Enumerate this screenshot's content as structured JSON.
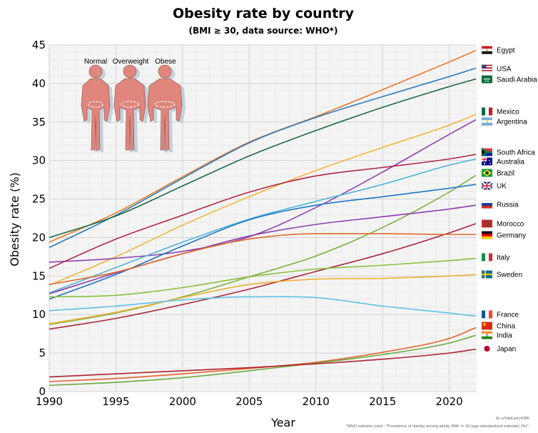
{
  "chart_data": {
    "type": "line",
    "title": "Obesity rate by country",
    "subtitle": "(BMI ≥ 30, data source: WHO*)",
    "xlabel": "Year",
    "ylabel": "Obesity rate (%)",
    "xlim": [
      1990,
      2022
    ],
    "ylim": [
      0,
      45
    ],
    "xticks": [
      1990,
      1995,
      2000,
      2005,
      2010,
      2015,
      2020
    ],
    "yticks": [
      0,
      5,
      10,
      15,
      20,
      25,
      30,
      35,
      40,
      45
    ],
    "grid": true,
    "legend": "right-edge labels",
    "x": [
      1990,
      1995,
      2000,
      2005,
      2010,
      2015,
      2020,
      2022
    ],
    "series": [
      {
        "name": "Egypt",
        "color": "#e87a2c",
        "values": [
          19.4,
          23.2,
          27.9,
          32.4,
          35.7,
          39.2,
          42.8,
          44.3
        ]
      },
      {
        "name": "USA",
        "color": "#2a7bbd",
        "values": [
          18.7,
          22.9,
          27.7,
          32.3,
          35.6,
          38.3,
          40.9,
          42.0
        ]
      },
      {
        "name": "Saudi Arabia",
        "color": "#1e6b45",
        "values": [
          20.0,
          22.8,
          26.7,
          30.6,
          33.9,
          36.9,
          39.6,
          40.6
        ]
      },
      {
        "name": "Mexico",
        "color": "#f2b43c",
        "values": [
          13.8,
          17.5,
          21.6,
          25.3,
          28.7,
          31.7,
          34.6,
          36.0
        ]
      },
      {
        "name": "Argentina",
        "color": "#8e44ad",
        "values": [
          16.8,
          17.3,
          18.2,
          20.1,
          23.9,
          28.5,
          33.4,
          35.3
        ]
      },
      {
        "name": "South Africa",
        "color": "#b02845",
        "values": [
          16.0,
          19.8,
          22.9,
          25.9,
          28.0,
          29.1,
          30.2,
          30.8
        ]
      },
      {
        "name": "Australia",
        "color": "#4fb3d9",
        "values": [
          12.8,
          16.1,
          19.4,
          22.4,
          24.7,
          26.9,
          29.4,
          30.2
        ]
      },
      {
        "name": "Brazil",
        "color": "#7cb342",
        "values": [
          8.7,
          10.2,
          12.3,
          14.9,
          17.6,
          21.3,
          25.9,
          28.1
        ]
      },
      {
        "name": "UK",
        "color": "#1f77c4",
        "values": [
          12.0,
          15.2,
          18.9,
          22.3,
          24.2,
          25.3,
          26.4,
          26.9
        ]
      },
      {
        "name": "Russia",
        "color": "#8a3fb0",
        "values": [
          12.7,
          15.4,
          17.9,
          20.2,
          21.7,
          22.7,
          23.7,
          24.2
        ]
      },
      {
        "name": "Morocco",
        "color": "#a8263b",
        "values": [
          8.1,
          9.5,
          11.3,
          13.3,
          15.6,
          17.9,
          20.6,
          21.8
        ]
      },
      {
        "name": "Germany",
        "color": "#e06a2a",
        "values": [
          13.9,
          15.5,
          17.9,
          19.8,
          20.5,
          20.5,
          20.4,
          20.4
        ]
      },
      {
        "name": "Italy",
        "color": "#8bbf3e",
        "values": [
          12.3,
          12.5,
          13.5,
          14.9,
          15.9,
          16.4,
          17.0,
          17.3
        ]
      },
      {
        "name": "Sweden",
        "color": "#f0b030",
        "values": [
          8.8,
          10.3,
          12.2,
          13.9,
          14.6,
          14.7,
          15.0,
          15.2
        ]
      },
      {
        "name": "France",
        "color": "#5ec1e6",
        "values": [
          10.5,
          11.1,
          11.9,
          12.3,
          12.2,
          11.1,
          10.2,
          9.8
        ]
      },
      {
        "name": "China",
        "color": "#e6622e",
        "values": [
          1.3,
          1.7,
          2.3,
          3.0,
          3.8,
          5.1,
          6.9,
          8.3
        ]
      },
      {
        "name": "India",
        "color": "#6aab3f",
        "values": [
          0.8,
          1.2,
          1.8,
          2.7,
          3.7,
          4.8,
          6.3,
          7.3
        ]
      },
      {
        "name": "Japan",
        "color": "#b02232",
        "values": [
          1.9,
          2.3,
          2.7,
          3.1,
          3.6,
          4.2,
          5.0,
          5.5
        ]
      }
    ],
    "legend_flags": {
      "Egypt": [
        "#ce1126",
        "#ffffff",
        "#000000"
      ],
      "USA": [
        "#b22234",
        "#ffffff",
        "#3c3b6e"
      ],
      "Saudi Arabia": [
        "#006c35"
      ],
      "Mexico": [
        "#006847",
        "#ffffff",
        "#ce1126"
      ],
      "Argentina": [
        "#74acdf",
        "#ffffff",
        "#74acdf"
      ],
      "South Africa": [
        "#007a4d",
        "#ffb612",
        "#de3831",
        "#002395"
      ],
      "Australia": [
        "#00008b",
        "#ffffff",
        "#ff0000"
      ],
      "Brazil": [
        "#009c3b",
        "#ffdf00",
        "#002776"
      ],
      "UK": [
        "#012169",
        "#ffffff",
        "#c8102e"
      ],
      "Russia": [
        "#ffffff",
        "#0039a6",
        "#d52b1e"
      ],
      "Morocco": [
        "#c1272d",
        "#006233"
      ],
      "Germany": [
        "#000000",
        "#dd0000",
        "#ffce00"
      ],
      "Italy": [
        "#009246",
        "#ffffff",
        "#ce2b37"
      ],
      "Sweden": [
        "#006aa7",
        "#fecc00"
      ],
      "France": [
        "#0055a4",
        "#ffffff",
        "#ef4135"
      ],
      "China": [
        "#de2910",
        "#ffde00"
      ],
      "India": [
        "#ff9933",
        "#ffffff",
        "#138808"
      ],
      "Japan": [
        "#bc002d"
      ]
    },
    "inset": {
      "labels": [
        "Normal",
        "Overweight",
        "Obese"
      ],
      "body_color": "#e0867c",
      "shadow_color": "#b8c8d6"
    },
    "credit": "by u/YakEvery4385",
    "footnote": "*WHO indicator used : \"Prevalence of obesity among adults, BMI >= 30 (age-standardized estimate) (%)\"."
  }
}
